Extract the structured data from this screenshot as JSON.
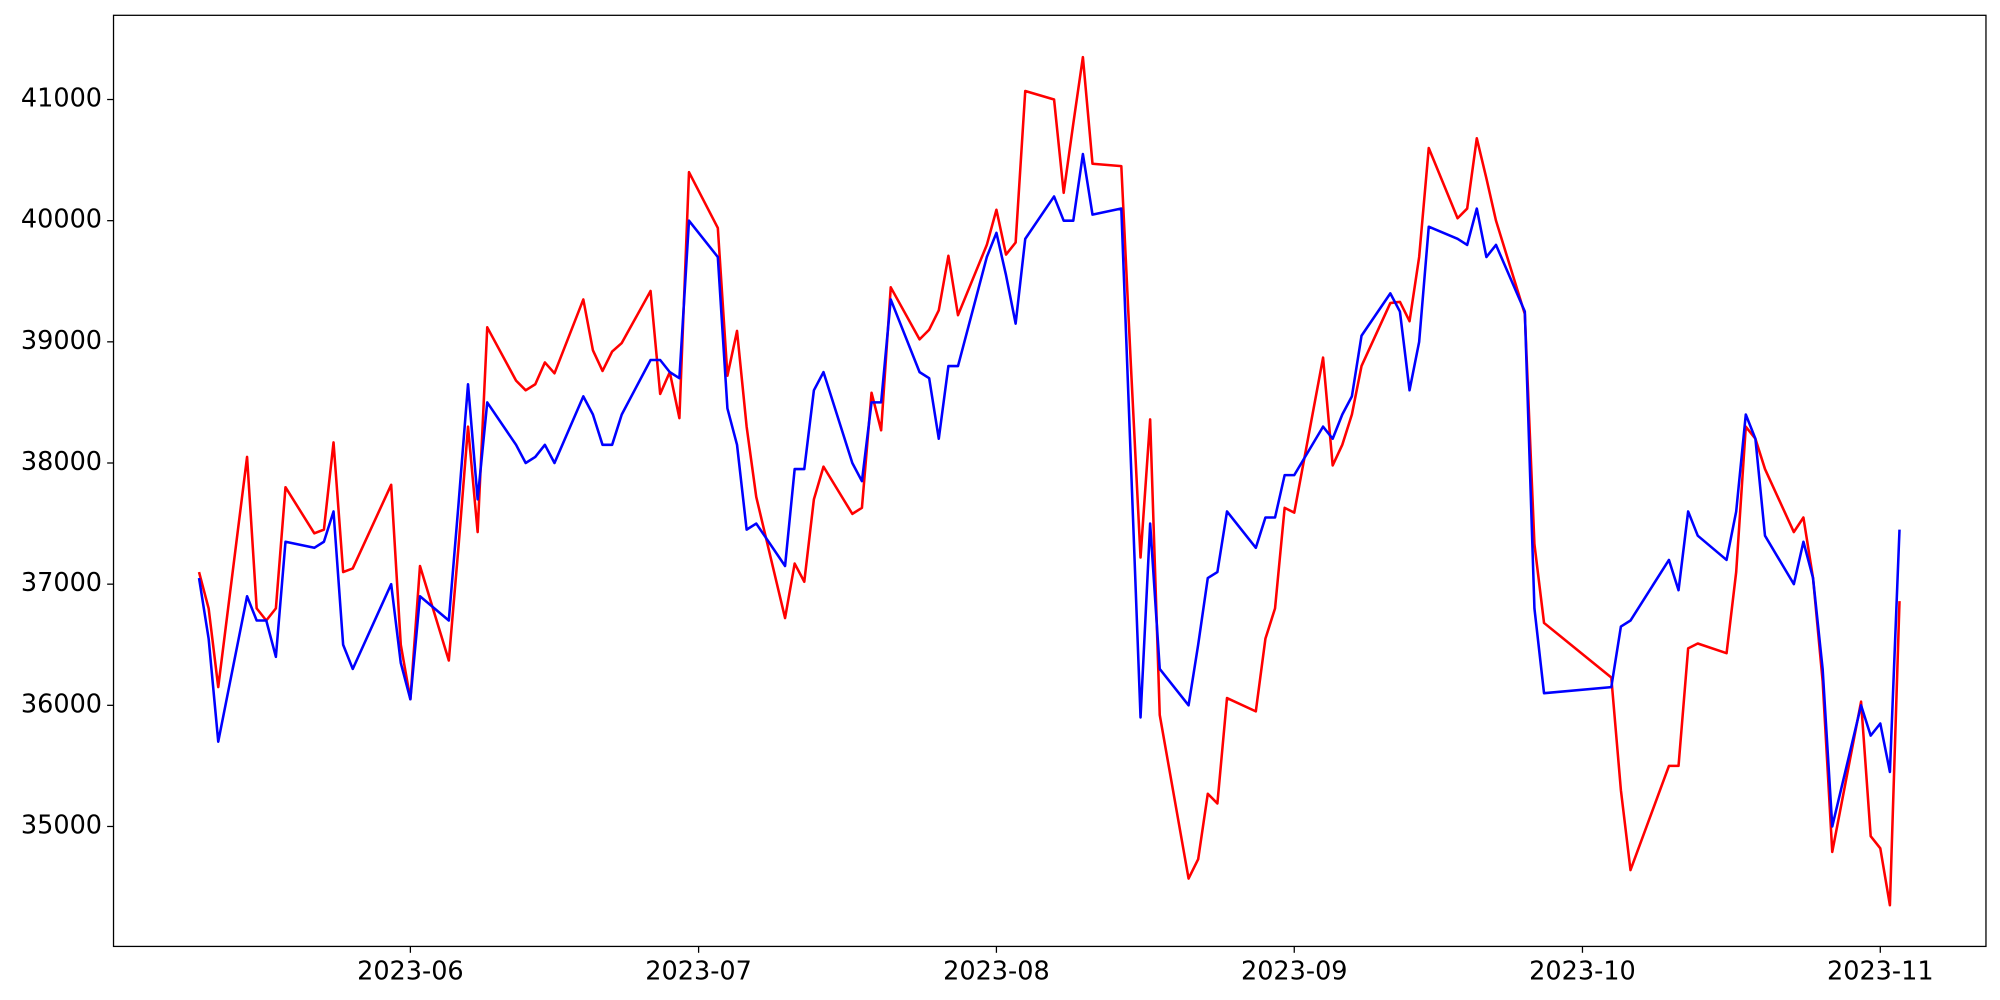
{
  "chart_data": {
    "type": "line",
    "x": [
      130,
      131,
      132,
      135,
      136,
      137,
      138,
      139,
      142,
      143,
      144,
      145,
      146,
      150,
      151,
      152,
      153,
      156,
      157,
      158,
      159,
      160,
      163,
      164,
      165,
      166,
      167,
      170,
      171,
      172,
      173,
      174,
      177,
      178,
      179,
      180,
      181,
      184,
      185,
      186,
      187,
      188,
      191,
      192,
      193,
      194,
      195,
      198,
      199,
      200,
      201,
      202,
      205,
      206,
      207,
      208,
      209,
      212,
      213,
      214,
      215,
      216,
      219,
      220,
      221,
      222,
      223,
      226,
      227,
      228,
      229,
      230,
      233,
      234,
      235,
      236,
      237,
      240,
      241,
      242,
      243,
      244,
      247,
      248,
      249,
      250,
      251,
      254,
      255,
      256,
      257,
      258,
      261,
      262,
      263,
      264,
      265,
      268,
      269,
      270,
      277,
      278,
      279,
      283,
      284,
      285,
      286,
      289,
      290,
      291,
      292,
      293,
      296,
      297,
      298,
      299,
      300,
      303,
      304,
      305,
      306,
      307
    ],
    "series": [
      {
        "color": "#ff0000",
        "values": [
          37100,
          36800,
          36150,
          38050,
          36800,
          36700,
          36800,
          37800,
          37420,
          37450,
          38170,
          37100,
          37130,
          37820,
          36500,
          36050,
          37150,
          36370,
          37300,
          38300,
          37430,
          39120,
          38680,
          38600,
          38650,
          38830,
          38740,
          39350,
          38930,
          38760,
          38920,
          38990,
          39420,
          38570,
          38750,
          38370,
          40400,
          39940,
          38720,
          39090,
          38300,
          37720,
          36720,
          37170,
          37020,
          37700,
          37970,
          37580,
          37630,
          38580,
          38270,
          39450,
          39020,
          39100,
          39260,
          39710,
          39220,
          39800,
          40090,
          39720,
          39820,
          41070,
          41000,
          40230,
          40800,
          41350,
          40470,
          40450,
          38800,
          37220,
          38360,
          35920,
          34570,
          34730,
          35270,
          35190,
          36060,
          35950,
          36550,
          36800,
          37630,
          37590,
          38870,
          37980,
          38150,
          38400,
          38800,
          39320,
          39330,
          39170,
          39700,
          40600,
          40020,
          40100,
          40680,
          40350,
          40000,
          39230,
          37330,
          36680,
          36230,
          35300,
          34640,
          35500,
          35500,
          36470,
          36510,
          36430,
          37100,
          38300,
          38200,
          37950,
          37430,
          37550,
          37050,
          36200,
          34790,
          36030,
          34920,
          34820,
          34350,
          36860
        ]
      },
      {
        "color": "#0000ff",
        "values": [
          37050,
          36550,
          35700,
          36900,
          36700,
          36700,
          36400,
          37350,
          37300,
          37350,
          37600,
          36500,
          36300,
          37000,
          36350,
          36050,
          36900,
          36700,
          37650,
          38650,
          37700,
          38500,
          38150,
          38000,
          38050,
          38150,
          38000,
          38550,
          38400,
          38150,
          38150,
          38400,
          38850,
          38850,
          38750,
          38700,
          40000,
          39700,
          38450,
          38150,
          37450,
          37500,
          37150,
          37950,
          37950,
          38600,
          38750,
          38000,
          37850,
          38500,
          38500,
          39350,
          38750,
          38700,
          38200,
          38800,
          38800,
          39700,
          39900,
          39550,
          39150,
          39850,
          40200,
          40000,
          40000,
          40550,
          40050,
          40100,
          38000,
          35900,
          37500,
          36300,
          36000,
          36500,
          37050,
          37100,
          37600,
          37300,
          37550,
          37550,
          37900,
          37900,
          38300,
          38200,
          38400,
          38550,
          39050,
          39400,
          39250,
          38600,
          39000,
          39950,
          39850,
          39800,
          40100,
          39700,
          39800,
          39250,
          36800,
          36100,
          36150,
          36650,
          36700,
          37200,
          36950,
          37600,
          37400,
          37200,
          37600,
          38400,
          38200,
          37400,
          37000,
          37350,
          37050,
          36300,
          35000,
          36000,
          35750,
          35850,
          35450,
          37450
        ]
      }
    ],
    "xlim": [
      121.1,
      316.0
    ],
    "xticks": [
      {
        "value": 152,
        "label": "2023-06"
      },
      {
        "value": 182,
        "label": "2023-07"
      },
      {
        "value": 213,
        "label": "2023-08"
      },
      {
        "value": 244,
        "label": "2023-09"
      },
      {
        "value": 274,
        "label": "2023-10"
      },
      {
        "value": 305,
        "label": "2023-11"
      }
    ],
    "ylim": [
      34010,
      41695
    ],
    "yticks": [
      35000,
      36000,
      37000,
      38000,
      39000,
      40000,
      41000
    ]
  }
}
